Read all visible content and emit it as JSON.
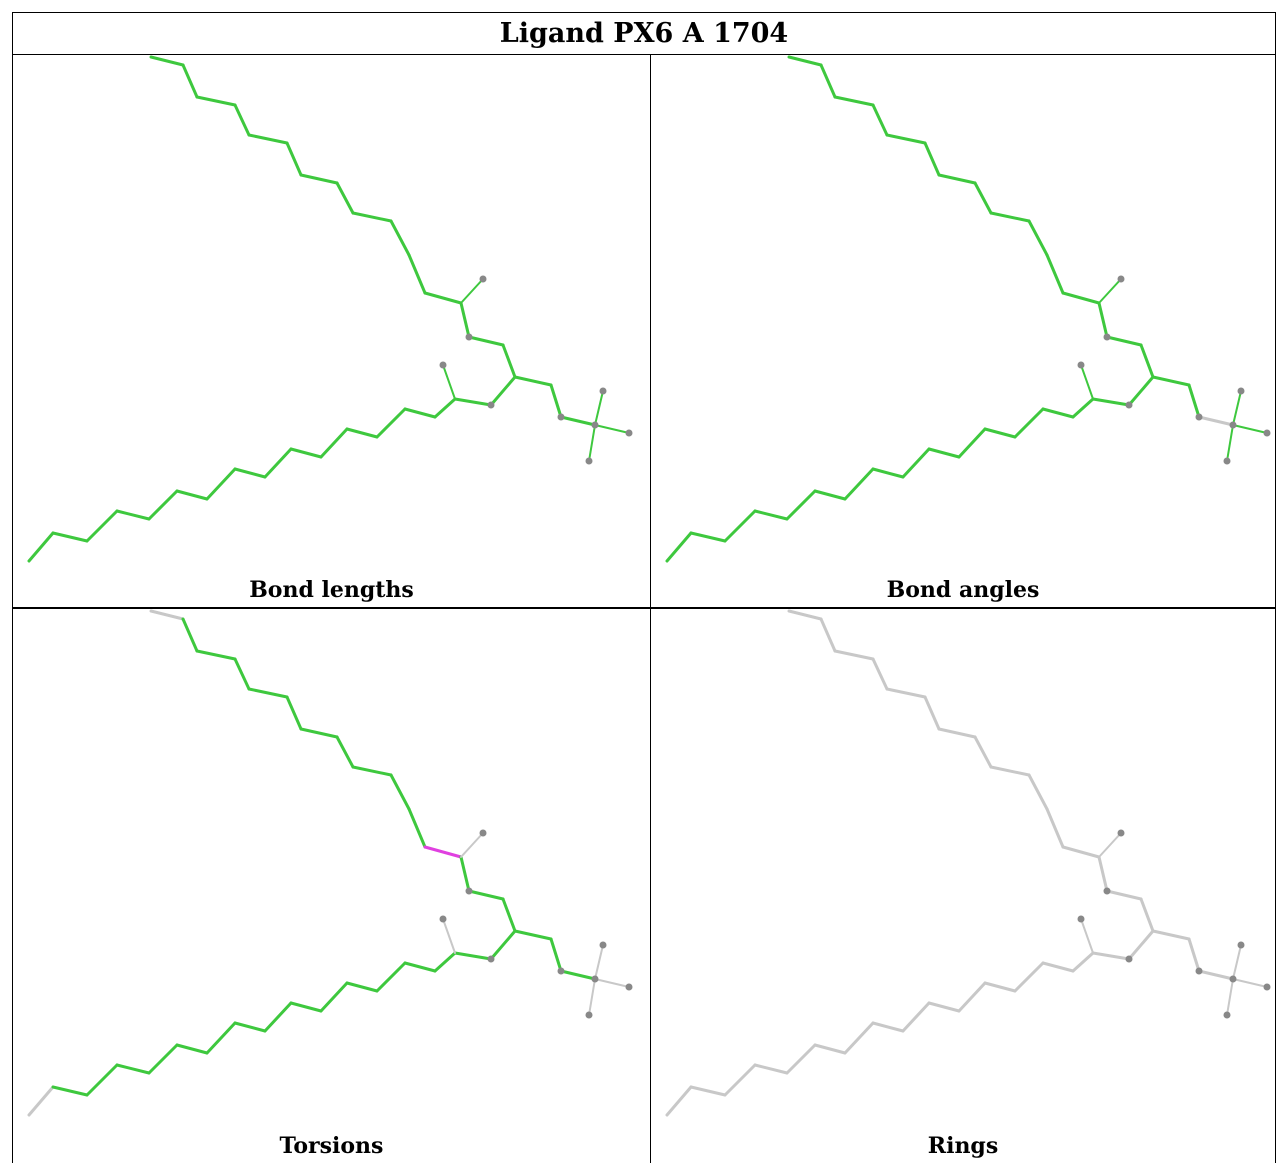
{
  "title": "Ligand PX6 A 1704",
  "panels": [
    {
      "caption": "Bond lengths",
      "mode": "lengths"
    },
    {
      "caption": "Bond angles",
      "mode": "angles"
    },
    {
      "caption": "Torsions",
      "mode": "torsions"
    },
    {
      "caption": "Rings",
      "mode": "rings"
    }
  ],
  "colors": {
    "ok": "#3ec83e",
    "outlier": "#e040e0",
    "neutral": "#c8c8c8",
    "atom": "#888888",
    "border": "#000000"
  }
}
